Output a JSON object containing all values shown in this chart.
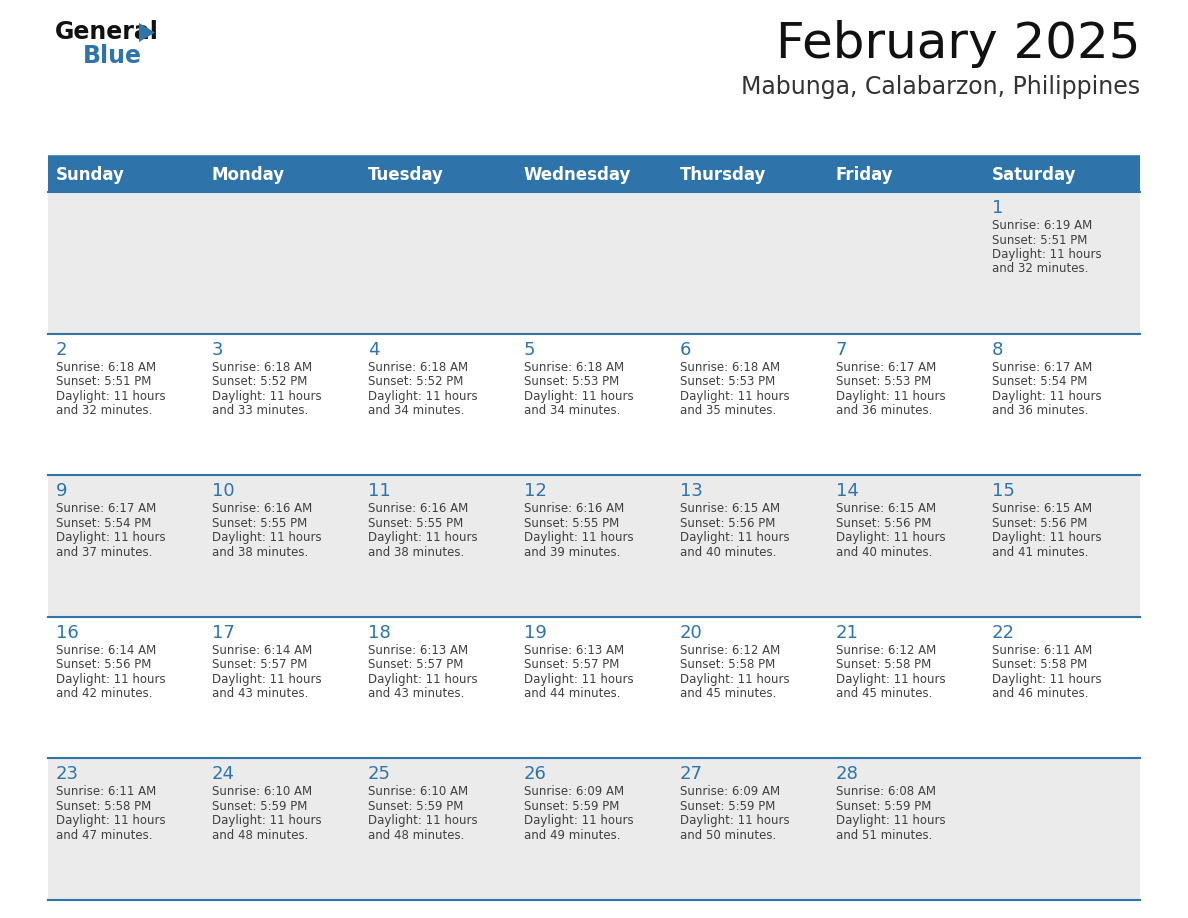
{
  "title": "February 2025",
  "subtitle": "Mabunga, Calabarzon, Philippines",
  "header_color": "#2E74AA",
  "header_text_color": "#FFFFFF",
  "day_names": [
    "Sunday",
    "Monday",
    "Tuesday",
    "Wednesday",
    "Thursday",
    "Friday",
    "Saturday"
  ],
  "background_color": "#FFFFFF",
  "cell_bg_even": "#EBEBEB",
  "cell_bg_odd": "#FFFFFF",
  "separator_color": "#2E74AA",
  "day_number_color": "#2E74AA",
  "info_text_color": "#404040",
  "calendar_data": [
    [
      null,
      null,
      null,
      null,
      null,
      null,
      {
        "day": 1,
        "sunrise": "6:19 AM",
        "sunset": "5:51 PM",
        "daylight_line1": "Daylight: 11 hours",
        "daylight_line2": "and 32 minutes."
      }
    ],
    [
      {
        "day": 2,
        "sunrise": "6:18 AM",
        "sunset": "5:51 PM",
        "daylight_line1": "Daylight: 11 hours",
        "daylight_line2": "and 32 minutes."
      },
      {
        "day": 3,
        "sunrise": "6:18 AM",
        "sunset": "5:52 PM",
        "daylight_line1": "Daylight: 11 hours",
        "daylight_line2": "and 33 minutes."
      },
      {
        "day": 4,
        "sunrise": "6:18 AM",
        "sunset": "5:52 PM",
        "daylight_line1": "Daylight: 11 hours",
        "daylight_line2": "and 34 minutes."
      },
      {
        "day": 5,
        "sunrise": "6:18 AM",
        "sunset": "5:53 PM",
        "daylight_line1": "Daylight: 11 hours",
        "daylight_line2": "and 34 minutes."
      },
      {
        "day": 6,
        "sunrise": "6:18 AM",
        "sunset": "5:53 PM",
        "daylight_line1": "Daylight: 11 hours",
        "daylight_line2": "and 35 minutes."
      },
      {
        "day": 7,
        "sunrise": "6:17 AM",
        "sunset": "5:53 PM",
        "daylight_line1": "Daylight: 11 hours",
        "daylight_line2": "and 36 minutes."
      },
      {
        "day": 8,
        "sunrise": "6:17 AM",
        "sunset": "5:54 PM",
        "daylight_line1": "Daylight: 11 hours",
        "daylight_line2": "and 36 minutes."
      }
    ],
    [
      {
        "day": 9,
        "sunrise": "6:17 AM",
        "sunset": "5:54 PM",
        "daylight_line1": "Daylight: 11 hours",
        "daylight_line2": "and 37 minutes."
      },
      {
        "day": 10,
        "sunrise": "6:16 AM",
        "sunset": "5:55 PM",
        "daylight_line1": "Daylight: 11 hours",
        "daylight_line2": "and 38 minutes."
      },
      {
        "day": 11,
        "sunrise": "6:16 AM",
        "sunset": "5:55 PM",
        "daylight_line1": "Daylight: 11 hours",
        "daylight_line2": "and 38 minutes."
      },
      {
        "day": 12,
        "sunrise": "6:16 AM",
        "sunset": "5:55 PM",
        "daylight_line1": "Daylight: 11 hours",
        "daylight_line2": "and 39 minutes."
      },
      {
        "day": 13,
        "sunrise": "6:15 AM",
        "sunset": "5:56 PM",
        "daylight_line1": "Daylight: 11 hours",
        "daylight_line2": "and 40 minutes."
      },
      {
        "day": 14,
        "sunrise": "6:15 AM",
        "sunset": "5:56 PM",
        "daylight_line1": "Daylight: 11 hours",
        "daylight_line2": "and 40 minutes."
      },
      {
        "day": 15,
        "sunrise": "6:15 AM",
        "sunset": "5:56 PM",
        "daylight_line1": "Daylight: 11 hours",
        "daylight_line2": "and 41 minutes."
      }
    ],
    [
      {
        "day": 16,
        "sunrise": "6:14 AM",
        "sunset": "5:56 PM",
        "daylight_line1": "Daylight: 11 hours",
        "daylight_line2": "and 42 minutes."
      },
      {
        "day": 17,
        "sunrise": "6:14 AM",
        "sunset": "5:57 PM",
        "daylight_line1": "Daylight: 11 hours",
        "daylight_line2": "and 43 minutes."
      },
      {
        "day": 18,
        "sunrise": "6:13 AM",
        "sunset": "5:57 PM",
        "daylight_line1": "Daylight: 11 hours",
        "daylight_line2": "and 43 minutes."
      },
      {
        "day": 19,
        "sunrise": "6:13 AM",
        "sunset": "5:57 PM",
        "daylight_line1": "Daylight: 11 hours",
        "daylight_line2": "and 44 minutes."
      },
      {
        "day": 20,
        "sunrise": "6:12 AM",
        "sunset": "5:58 PM",
        "daylight_line1": "Daylight: 11 hours",
        "daylight_line2": "and 45 minutes."
      },
      {
        "day": 21,
        "sunrise": "6:12 AM",
        "sunset": "5:58 PM",
        "daylight_line1": "Daylight: 11 hours",
        "daylight_line2": "and 45 minutes."
      },
      {
        "day": 22,
        "sunrise": "6:11 AM",
        "sunset": "5:58 PM",
        "daylight_line1": "Daylight: 11 hours",
        "daylight_line2": "and 46 minutes."
      }
    ],
    [
      {
        "day": 23,
        "sunrise": "6:11 AM",
        "sunset": "5:58 PM",
        "daylight_line1": "Daylight: 11 hours",
        "daylight_line2": "and 47 minutes."
      },
      {
        "day": 24,
        "sunrise": "6:10 AM",
        "sunset": "5:59 PM",
        "daylight_line1": "Daylight: 11 hours",
        "daylight_line2": "and 48 minutes."
      },
      {
        "day": 25,
        "sunrise": "6:10 AM",
        "sunset": "5:59 PM",
        "daylight_line1": "Daylight: 11 hours",
        "daylight_line2": "and 48 minutes."
      },
      {
        "day": 26,
        "sunrise": "6:09 AM",
        "sunset": "5:59 PM",
        "daylight_line1": "Daylight: 11 hours",
        "daylight_line2": "and 49 minutes."
      },
      {
        "day": 27,
        "sunrise": "6:09 AM",
        "sunset": "5:59 PM",
        "daylight_line1": "Daylight: 11 hours",
        "daylight_line2": "and 50 minutes."
      },
      {
        "day": 28,
        "sunrise": "6:08 AM",
        "sunset": "5:59 PM",
        "daylight_line1": "Daylight: 11 hours",
        "daylight_line2": "and 51 minutes."
      },
      null
    ]
  ],
  "title_fontsize": 36,
  "subtitle_fontsize": 17,
  "day_header_fontsize": 12,
  "day_number_fontsize": 13,
  "cell_text_fontsize": 8.5
}
